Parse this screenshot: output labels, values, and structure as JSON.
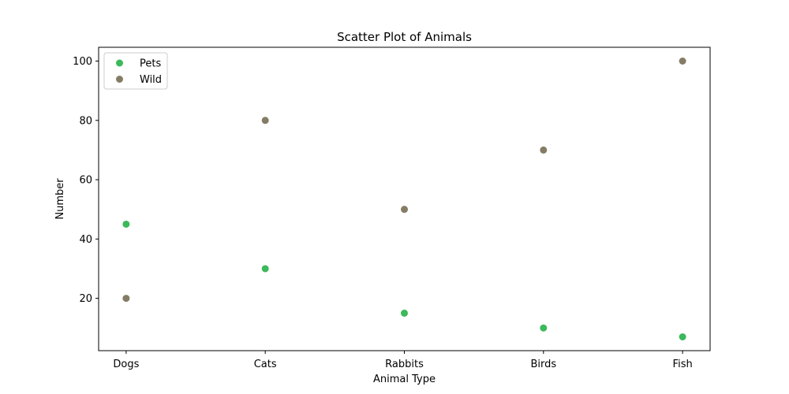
{
  "chart_data": {
    "type": "scatter",
    "title": "Scatter Plot of Animals",
    "xlabel": "Animal Type",
    "ylabel": "Number",
    "categories": [
      "Dogs",
      "Cats",
      "Rabbits",
      "Birds",
      "Fish"
    ],
    "ylim": [
      2.35,
      104.65
    ],
    "yticks": [
      20,
      40,
      60,
      80,
      100
    ],
    "grid": false,
    "legend_position": "top-left",
    "series": [
      {
        "name": "Pets",
        "color": "#3cb95a",
        "values": [
          45,
          30,
          15,
          10,
          7
        ]
      },
      {
        "name": "Wild",
        "color": "#857c66",
        "values": [
          20,
          80,
          50,
          70,
          100
        ]
      }
    ]
  }
}
